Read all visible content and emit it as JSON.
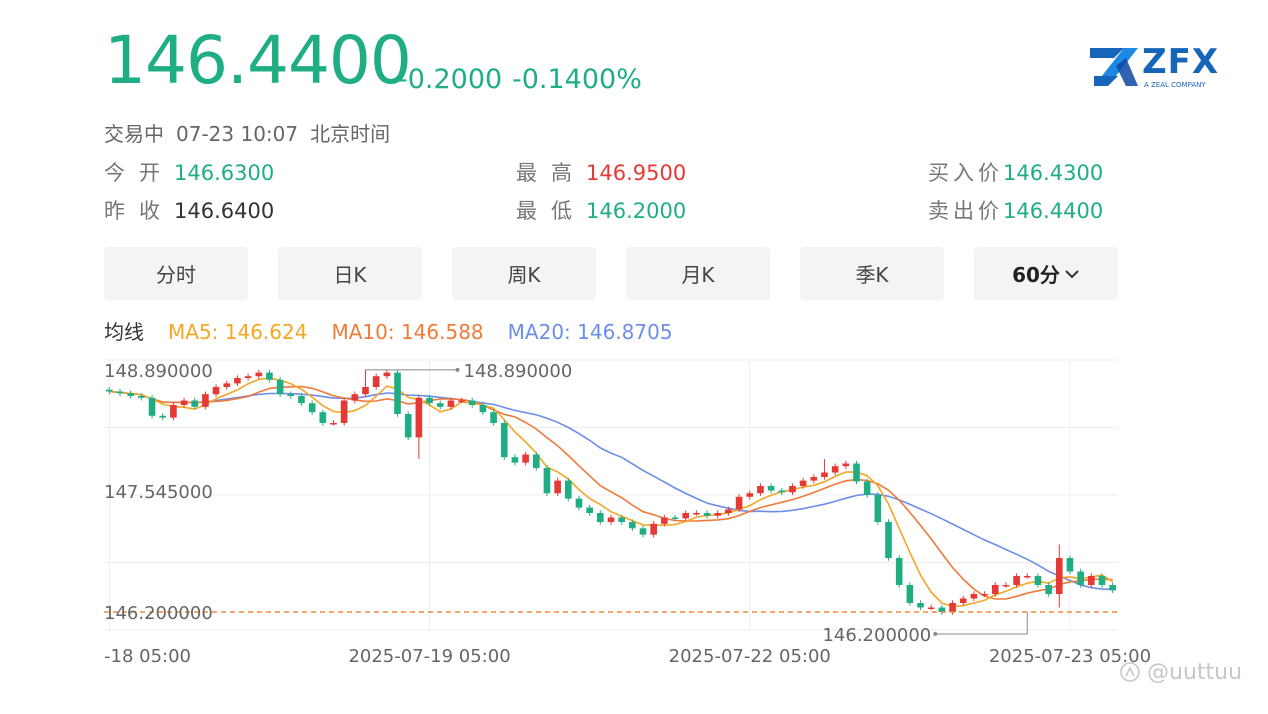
{
  "quote": {
    "price": "146.4400",
    "change": "-0.2000",
    "change_pct": "-0.1400%",
    "status": "交易中",
    "time": "07-23 10:07",
    "timezone": "北京时间"
  },
  "logo": {
    "text": "ZFX",
    "sub": "A ZEAL COMPANY"
  },
  "stats": {
    "open_label": "今开",
    "open": "146.6300",
    "prev_label": "昨收",
    "prev": "146.6400",
    "high_label": "最高",
    "high": "146.9500",
    "low_label": "最低",
    "low": "146.2000",
    "bid_label": "买入价",
    "bid": "146.4300",
    "ask_label": "卖出价",
    "ask": "146.4400"
  },
  "tabs": [
    {
      "label": "分时"
    },
    {
      "label": "日K"
    },
    {
      "label": "周K"
    },
    {
      "label": "月K"
    },
    {
      "label": "季K"
    },
    {
      "label": "60分",
      "active": true
    }
  ],
  "ma_legend": {
    "title": "均线",
    "ma5": "MA5: 146.624",
    "ma10": "MA10: 146.588",
    "ma20": "MA20: 146.8705"
  },
  "watermark": "@uuttuu",
  "colors": {
    "up": "#e53935",
    "down": "#1fae84",
    "ma5": "#f5a623",
    "ma10": "#f07a3a",
    "ma20": "#6d8ee8",
    "ref_line": "#f08a3c"
  },
  "chart_data": {
    "type": "candlestick",
    "ylim": [
      146.0,
      149.0
    ],
    "yticks": [
      {
        "value": 148.89,
        "label": "148.890000"
      },
      {
        "value": 147.545,
        "label": "147.545000"
      },
      {
        "value": 146.2,
        "label": "146.200000"
      }
    ],
    "xticks": [
      "-18 05:00",
      "2025-07-19 05:00",
      "2025-07-22 05:00",
      "2025-07-23 05:00"
    ],
    "xtick_index": [
      0,
      30,
      60,
      90
    ],
    "max_annotation": {
      "index": 24,
      "value": 148.89,
      "label": "148.890000"
    },
    "min_annotation": {
      "index": 86,
      "value": 146.2,
      "label": "146.200000"
    },
    "ref_line": 146.2,
    "closes": [
      148.65,
      148.63,
      148.6,
      148.58,
      148.38,
      148.36,
      148.5,
      148.55,
      148.48,
      148.62,
      148.7,
      148.74,
      148.8,
      148.82,
      148.86,
      148.78,
      148.62,
      148.6,
      148.52,
      148.42,
      148.3,
      148.3,
      148.55,
      148.62,
      148.7,
      148.82,
      148.86,
      148.4,
      148.14,
      148.58,
      148.52,
      148.48,
      148.55,
      148.55,
      148.5,
      148.42,
      148.3,
      147.92,
      147.86,
      147.95,
      147.8,
      147.52,
      147.66,
      147.46,
      147.36,
      147.3,
      147.2,
      147.25,
      147.2,
      147.13,
      147.06,
      147.18,
      147.25,
      147.24,
      147.3,
      147.3,
      147.27,
      147.3,
      147.34,
      147.48,
      147.52,
      147.6,
      147.55,
      147.53,
      147.6,
      147.66,
      147.7,
      147.75,
      147.82,
      147.85,
      147.65,
      147.5,
      147.2,
      146.8,
      146.5,
      146.3,
      146.25,
      146.25,
      146.2,
      146.3,
      146.35,
      146.4,
      146.4,
      146.5,
      146.5,
      146.6,
      146.6,
      146.5,
      146.4,
      146.8,
      146.65,
      146.5,
      146.6,
      146.5,
      146.44
    ],
    "extremes": [
      {
        "index": 24,
        "high": 148.89
      },
      {
        "index": 29,
        "low": 147.9
      },
      {
        "index": 67,
        "high": 147.9
      },
      {
        "index": 89,
        "high": 146.95,
        "low": 146.25
      }
    ]
  }
}
